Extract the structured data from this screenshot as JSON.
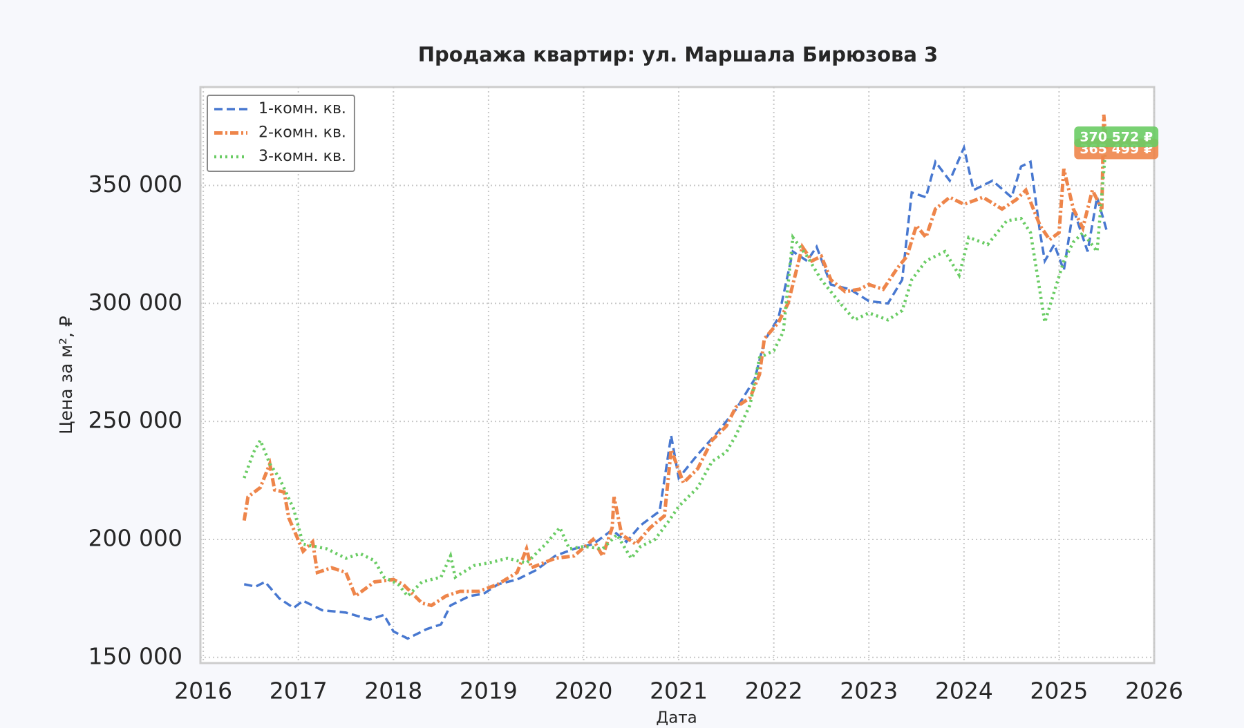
{
  "chart_data": {
    "type": "line",
    "title": "Продажа квартир: ул. Маршала Бирюзова 3",
    "x_label": "Дата",
    "y_label": "Цена за м², ₽",
    "xlim": [
      2015.97,
      2026.0
    ],
    "ylim": [
      147600,
      391700
    ],
    "xticks": [
      2016,
      2017,
      2018,
      2019,
      2020,
      2021,
      2022,
      2023,
      2024,
      2025,
      2026
    ],
    "yticks": [
      {
        "value": 150000,
        "label": "150 000"
      },
      {
        "value": 200000,
        "label": "200 000"
      },
      {
        "value": 250000,
        "label": "250 000"
      },
      {
        "value": 300000,
        "label": "300 000"
      },
      {
        "value": 350000,
        "label": "350 000"
      }
    ],
    "grid": true,
    "legend": "upper left",
    "series": [
      {
        "name": "1-комн. кв.",
        "color": "#4878d0",
        "style": "dashed",
        "x": [
          2016.43,
          2016.55,
          2016.65,
          2016.8,
          2016.95,
          2017.05,
          2017.25,
          2017.5,
          2017.75,
          2017.9,
          2018.0,
          2018.15,
          2018.35,
          2018.5,
          2018.6,
          2018.8,
          2018.95,
          2019.1,
          2019.3,
          2019.5,
          2019.7,
          2019.9,
          2020.1,
          2020.3,
          2020.45,
          2020.6,
          2020.8,
          2020.92,
          2021.0,
          2021.2,
          2021.4,
          2021.6,
          2021.8,
          2021.9,
          2022.05,
          2022.2,
          2022.35,
          2022.45,
          2022.6,
          2022.8,
          2023.0,
          2023.2,
          2023.35,
          2023.45,
          2023.6,
          2023.7,
          2023.85,
          2024.0,
          2024.1,
          2024.3,
          2024.5,
          2024.6,
          2024.7,
          2024.8,
          2024.85,
          2024.95,
          2025.05,
          2025.15,
          2025.3,
          2025.4,
          2025.5
        ],
        "values": [
          181000,
          180000,
          182000,
          175000,
          171000,
          174000,
          170000,
          169000,
          166000,
          168000,
          161000,
          158000,
          162000,
          164000,
          172000,
          176000,
          177000,
          181000,
          183000,
          187000,
          193000,
          196000,
          198000,
          204000,
          199000,
          206000,
          212000,
          244000,
          226000,
          236000,
          245000,
          255000,
          268000,
          284000,
          294000,
          322000,
          318000,
          324000,
          308000,
          306000,
          301000,
          300000,
          310000,
          347000,
          345000,
          360000,
          352000,
          366000,
          348000,
          352000,
          345000,
          358000,
          360000,
          330000,
          318000,
          325000,
          314000,
          340000,
          322000,
          345000,
          331000
        ]
      },
      {
        "name": "2-комн. кв.",
        "color": "#ee854a",
        "style": "dashdot",
        "last_label": "365 499 ₽",
        "x": [
          2016.43,
          2016.47,
          2016.6,
          2016.7,
          2016.75,
          2016.85,
          2016.9,
          2017.05,
          2017.15,
          2017.2,
          2017.35,
          2017.5,
          2017.6,
          2017.8,
          2018.0,
          2018.1,
          2018.3,
          2018.4,
          2018.55,
          2018.7,
          2018.9,
          2019.1,
          2019.3,
          2019.4,
          2019.45,
          2019.7,
          2019.9,
          2020.1,
          2020.2,
          2020.3,
          2020.32,
          2020.4,
          2020.55,
          2020.7,
          2020.85,
          2020.92,
          2021.05,
          2021.2,
          2021.35,
          2021.5,
          2021.6,
          2021.75,
          2021.85,
          2021.9,
          2022.05,
          2022.15,
          2022.3,
          2022.4,
          2022.5,
          2022.6,
          2022.75,
          2022.9,
          2023.0,
          2023.15,
          2023.3,
          2023.4,
          2023.5,
          2023.6,
          2023.7,
          2023.85,
          2024.0,
          2024.2,
          2024.4,
          2024.55,
          2024.65,
          2024.8,
          2024.9,
          2025.0,
          2025.05,
          2025.15,
          2025.25,
          2025.35,
          2025.45,
          2025.47,
          2025.5
        ],
        "values": [
          208000,
          218000,
          222000,
          232000,
          221000,
          220000,
          209000,
          195000,
          199000,
          186000,
          188000,
          186000,
          176000,
          182000,
          183000,
          181000,
          173000,
          172000,
          176000,
          178000,
          178000,
          181000,
          186000,
          196000,
          188000,
          192000,
          193000,
          200000,
          193000,
          205000,
          218000,
          202000,
          198000,
          205000,
          210000,
          238000,
          224000,
          230000,
          242000,
          248000,
          256000,
          260000,
          270000,
          285000,
          292000,
          300000,
          324000,
          318000,
          320000,
          310000,
          305000,
          306000,
          308000,
          306000,
          315000,
          320000,
          333000,
          328000,
          340000,
          345000,
          342000,
          345000,
          340000,
          344000,
          348000,
          333000,
          327000,
          330000,
          357000,
          340000,
          332000,
          348000,
          340000,
          380000,
          365499
        ]
      },
      {
        "name": "3-комн. кв.",
        "color": "#6acc64",
        "style": "dotted",
        "last_label": "370 572 ₽",
        "x": [
          2016.43,
          2016.53,
          2016.6,
          2016.7,
          2016.8,
          2016.95,
          2017.05,
          2017.3,
          2017.5,
          2017.65,
          2017.8,
          2017.9,
          2018.05,
          2018.15,
          2018.3,
          2018.5,
          2018.6,
          2018.65,
          2018.85,
          2019.0,
          2019.2,
          2019.4,
          2019.6,
          2019.75,
          2019.85,
          2020.0,
          2020.2,
          2020.35,
          2020.5,
          2020.6,
          2020.75,
          2020.9,
          2021.0,
          2021.2,
          2021.35,
          2021.5,
          2021.6,
          2021.75,
          2021.85,
          2022.0,
          2022.1,
          2022.2,
          2022.35,
          2022.5,
          2022.7,
          2022.85,
          2023.0,
          2023.2,
          2023.35,
          2023.45,
          2023.6,
          2023.8,
          2023.95,
          2024.05,
          2024.25,
          2024.45,
          2024.6,
          2024.7,
          2024.78,
          2024.85,
          2024.95,
          2025.05,
          2025.15,
          2025.25,
          2025.4,
          2025.5
        ],
        "values": [
          226000,
          237000,
          242000,
          232000,
          226000,
          213000,
          198000,
          196000,
          192000,
          194000,
          191000,
          184000,
          181000,
          176000,
          182000,
          184000,
          193000,
          184000,
          189000,
          190000,
          192000,
          190000,
          198000,
          205000,
          196000,
          197000,
          196000,
          202000,
          192000,
          197000,
          200000,
          208000,
          214000,
          222000,
          233000,
          237000,
          244000,
          257000,
          277000,
          280000,
          288000,
          328000,
          320000,
          310000,
          300000,
          293000,
          296000,
          293000,
          297000,
          310000,
          318000,
          322000,
          312000,
          328000,
          325000,
          335000,
          336000,
          330000,
          310000,
          292000,
          305000,
          318000,
          326000,
          330000,
          322000,
          370572
        ]
      }
    ]
  }
}
